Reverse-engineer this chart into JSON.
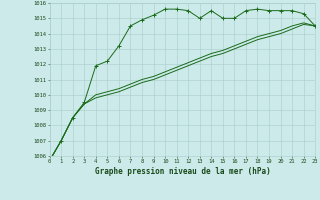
{
  "title": "Graphe pression niveau de la mer (hPa)",
  "background_color": "#cceaea",
  "grid_color": "#aacccc",
  "line_color": "#1a6b1a",
  "label_color": "#1a4a1a",
  "x_min": 0,
  "x_max": 23,
  "y_min": 1006,
  "y_max": 1016,
  "series1_x": [
    0,
    1,
    2,
    3,
    4,
    5,
    6,
    7,
    8,
    9,
    10,
    11,
    12,
    13,
    14,
    15,
    16,
    17,
    18,
    19,
    20,
    21,
    22,
    23
  ],
  "series1_y": [
    1005.7,
    1007.0,
    1008.5,
    1009.5,
    1011.9,
    1012.2,
    1013.2,
    1014.5,
    1014.9,
    1015.2,
    1015.6,
    1015.6,
    1015.5,
    1015.0,
    1015.5,
    1015.0,
    1015.0,
    1015.5,
    1015.6,
    1015.5,
    1015.5,
    1015.5,
    1015.3,
    1014.5
  ],
  "series2_x": [
    0,
    1,
    2,
    3,
    4,
    5,
    6,
    7,
    8,
    9,
    10,
    11,
    12,
    13,
    14,
    15,
    16,
    17,
    18,
    19,
    20,
    21,
    22,
    23
  ],
  "series2_y": [
    1005.7,
    1007.0,
    1008.5,
    1009.4,
    1010.0,
    1010.2,
    1010.4,
    1010.7,
    1011.0,
    1011.2,
    1011.5,
    1011.8,
    1012.1,
    1012.4,
    1012.7,
    1012.9,
    1013.2,
    1013.5,
    1013.8,
    1014.0,
    1014.2,
    1014.5,
    1014.7,
    1014.5
  ],
  "series3_x": [
    0,
    1,
    2,
    3,
    4,
    5,
    6,
    7,
    8,
    9,
    10,
    11,
    12,
    13,
    14,
    15,
    16,
    17,
    18,
    19,
    20,
    21,
    22,
    23
  ],
  "series3_y": [
    1005.7,
    1007.0,
    1008.5,
    1009.4,
    1009.8,
    1010.0,
    1010.2,
    1010.5,
    1010.8,
    1011.0,
    1011.3,
    1011.6,
    1011.9,
    1012.2,
    1012.5,
    1012.7,
    1013.0,
    1013.3,
    1013.6,
    1013.8,
    1014.0,
    1014.3,
    1014.6,
    1014.5
  ],
  "figwidth": 3.2,
  "figheight": 2.0,
  "dpi": 100
}
